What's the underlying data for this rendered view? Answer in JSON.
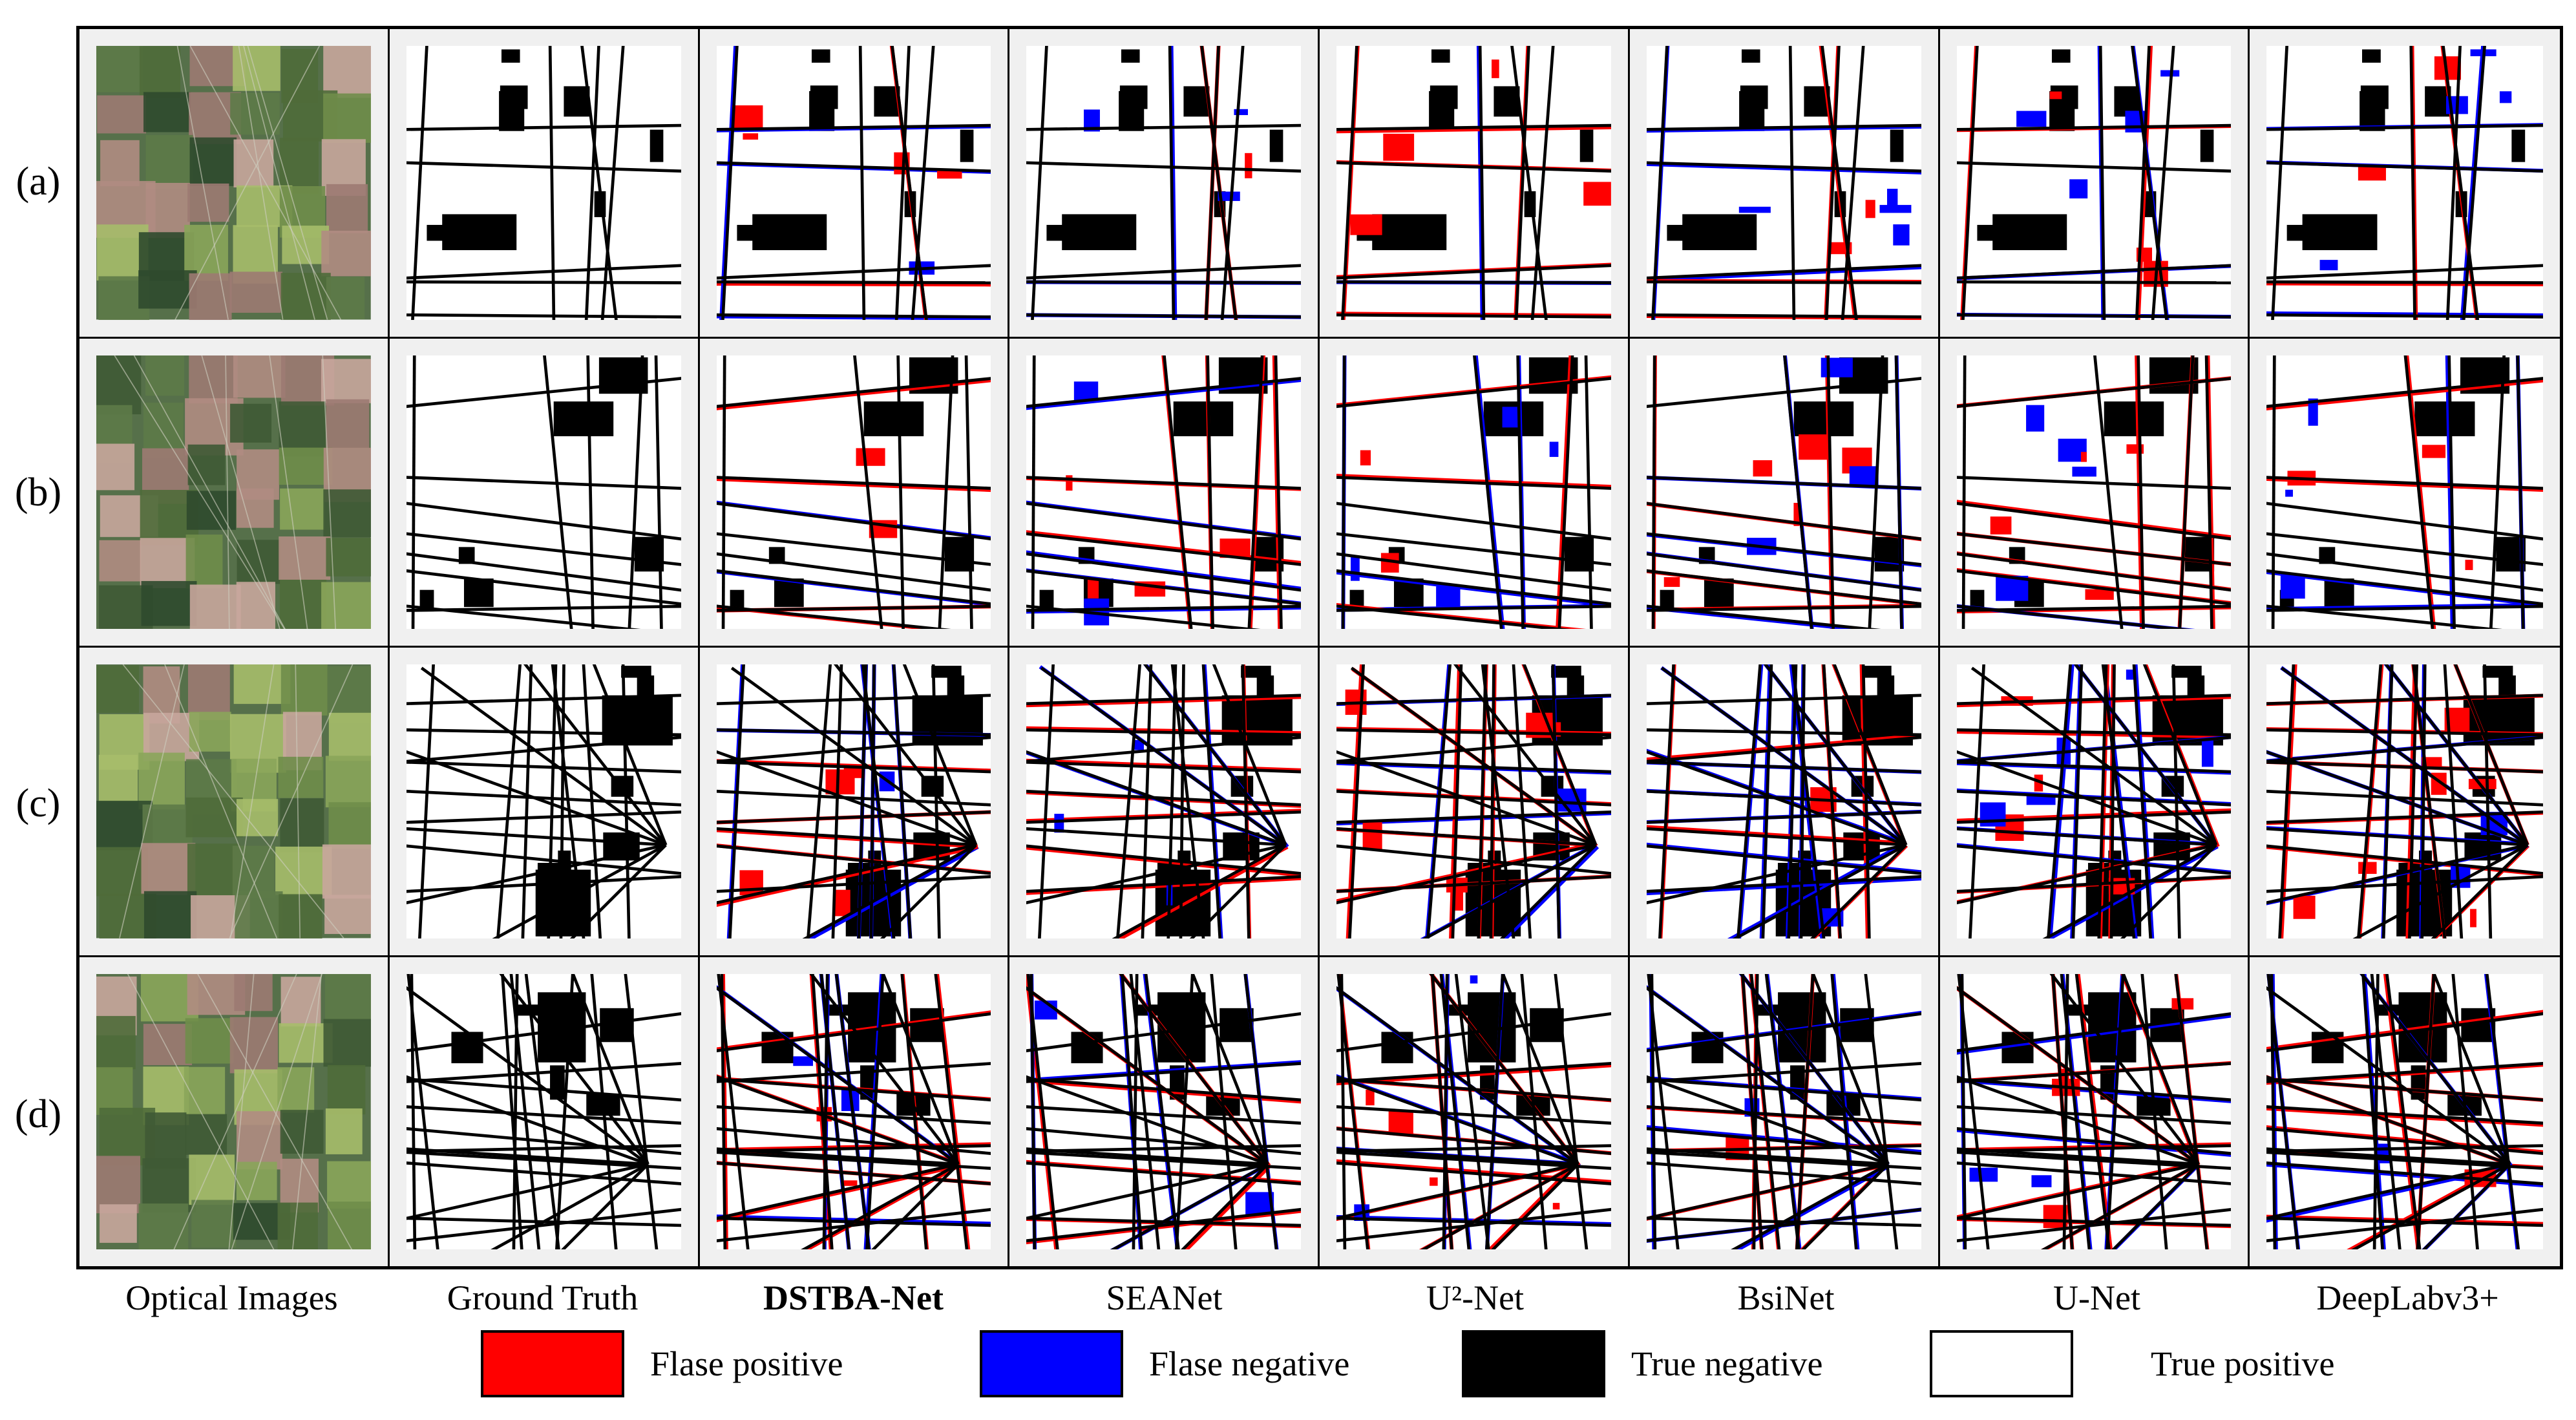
{
  "rows": [
    {
      "label": "(a)"
    },
    {
      "label": "(b)"
    },
    {
      "label": "(c)"
    },
    {
      "label": "(d)"
    }
  ],
  "columns": [
    {
      "label": "Optical Images",
      "bold": false,
      "kind": "optical"
    },
    {
      "label": "Ground Truth",
      "bold": false,
      "kind": "truth"
    },
    {
      "label": "DSTBA-Net",
      "bold": true,
      "kind": "pred"
    },
    {
      "label": "SEANet",
      "bold": false,
      "kind": "pred"
    },
    {
      "label": "U²-Net",
      "bold": false,
      "kind": "pred"
    },
    {
      "label": "BsiNet",
      "bold": false,
      "kind": "pred"
    },
    {
      "label": "U-Net",
      "bold": false,
      "kind": "pred"
    },
    {
      "label": "DeepLabv3+",
      "bold": false,
      "kind": "pred"
    }
  ],
  "legend": [
    {
      "label": "Flase positive",
      "color": "#ff0000"
    },
    {
      "label": "Flase negative",
      "color": "#0000ff"
    },
    {
      "label": "True negative",
      "color": "#000000"
    },
    {
      "label": "True positive",
      "color": "#ffffff"
    }
  ]
}
